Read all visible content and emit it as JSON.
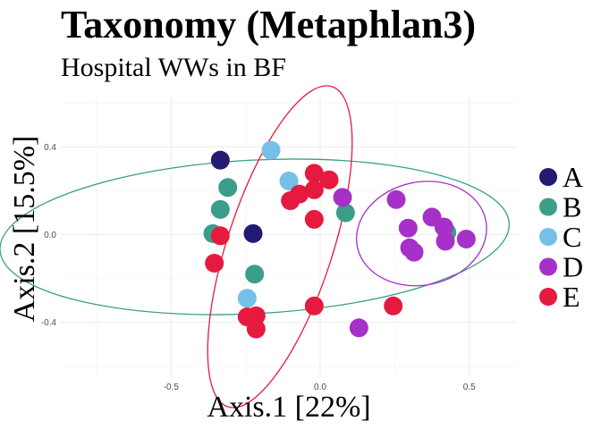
{
  "chart_data": {
    "type": "scatter",
    "title": "Taxonomy (Metaphlan3)",
    "subtitle": "Hospital WWs in BF",
    "xlabel": "Axis.1   [22%]",
    "ylabel": "Axis.2   [15.5%]",
    "xlim": [
      -0.87,
      0.66
    ],
    "ylim": [
      -0.65,
      0.63
    ],
    "x_ticks": [
      -0.5,
      0.0,
      0.5
    ],
    "x_tick_labels": [
      "-0.5",
      "0.0",
      "0.5"
    ],
    "y_ticks": [
      -0.4,
      0.0,
      0.4
    ],
    "y_tick_labels": [
      "-0.4",
      "0.0",
      "0.4"
    ],
    "grid": true,
    "legend_position": "right",
    "series": [
      {
        "name": "A",
        "color": "#221a73",
        "points": [
          [
            -0.335,
            0.34
          ],
          [
            -0.225,
            0.005
          ]
        ],
        "ellipse": null
      },
      {
        "name": "B",
        "color": "#3a9e8a",
        "points": [
          [
            -0.31,
            0.215
          ],
          [
            -0.335,
            0.115
          ],
          [
            -0.36,
            0.005
          ],
          [
            -0.22,
            -0.18
          ],
          [
            0.085,
            0.1
          ],
          [
            0.425,
            0.01
          ]
        ],
        "ellipse": {
          "cx": -0.22,
          "cy": -0.01,
          "rx": 0.855,
          "ry": 0.35,
          "angle": -3
        }
      },
      {
        "name": "C",
        "color": "#76bfe7",
        "points": [
          [
            -0.165,
            0.385
          ],
          [
            -0.105,
            0.245
          ],
          [
            -0.245,
            -0.29
          ]
        ],
        "ellipse": null
      },
      {
        "name": "D",
        "color": "#a630c8",
        "points": [
          [
            0.075,
            0.17
          ],
          [
            0.255,
            0.16
          ],
          [
            0.375,
            0.08
          ],
          [
            0.295,
            0.03
          ],
          [
            0.415,
            0.035
          ],
          [
            0.3,
            -0.06
          ],
          [
            0.315,
            -0.08
          ],
          [
            0.42,
            -0.03
          ],
          [
            0.49,
            -0.02
          ],
          [
            0.13,
            -0.425
          ]
        ],
        "ellipse": {
          "cx": 0.34,
          "cy": 0.005,
          "rx": 0.22,
          "ry": 0.235,
          "angle": -12
        }
      },
      {
        "name": "E",
        "color": "#e51a3e",
        "points": [
          [
            -0.02,
            0.28
          ],
          [
            0.03,
            0.25
          ],
          [
            -0.07,
            0.185
          ],
          [
            -0.02,
            0.205
          ],
          [
            -0.1,
            0.155
          ],
          [
            -0.02,
            0.07
          ],
          [
            -0.335,
            -0.005
          ],
          [
            -0.355,
            -0.13
          ],
          [
            -0.245,
            -0.375
          ],
          [
            -0.215,
            -0.37
          ],
          [
            -0.215,
            -0.43
          ],
          [
            -0.02,
            -0.325
          ],
          [
            0.245,
            -0.325
          ]
        ],
        "ellipse": {
          "cx": -0.135,
          "cy": -0.055,
          "rx": 0.565,
          "ry": 0.24,
          "angle": -72
        }
      }
    ]
  }
}
